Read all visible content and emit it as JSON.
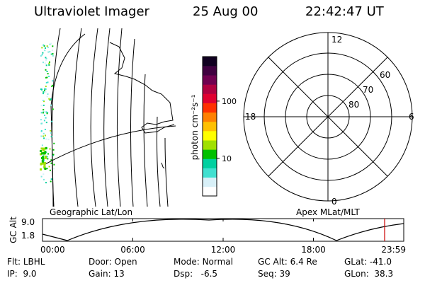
{
  "header": {
    "instrument": "Ultraviolet Imager",
    "date": "25 Aug 00",
    "time": "22:42:47 UT"
  },
  "geo_panel": {
    "caption": "Geographic Lat/Lon"
  },
  "colorbar": {
    "label": "photon cm⁻²s⁻¹",
    "ticks": [
      {
        "value": 100,
        "label": "100"
      },
      {
        "value": 10,
        "label": "10"
      }
    ],
    "scale": "log",
    "colors": [
      "#ffffff",
      "#d8f0f8",
      "#40e0d0",
      "#00d0a0",
      "#00c000",
      "#a0e000",
      "#ffff00",
      "#ffc000",
      "#ff8000",
      "#ff3000",
      "#e00030",
      "#b00040",
      "#700050",
      "#400040",
      "#100020"
    ]
  },
  "polar_panel": {
    "caption": "Apex MLat/MLT",
    "mlt_labels": [
      {
        "text": "12",
        "pos": "top"
      },
      {
        "text": "6",
        "pos": "right"
      },
      {
        "text": "18",
        "pos": "left"
      },
      {
        "text": "0",
        "pos": "bottom"
      }
    ],
    "lat_labels": [
      "60",
      "70",
      "80"
    ]
  },
  "altitude_plot": {
    "ylabel": "GC Alt",
    "yticks": [
      "9.0",
      "1.8"
    ],
    "xticks": [
      "00:00",
      "06:00",
      "12:00",
      "18:00",
      "23:59"
    ],
    "marker_time": "22:42:47",
    "marker_color": "#cc0000"
  },
  "info": {
    "row1": [
      {
        "label": "Flt:",
        "value": "LBHL"
      },
      {
        "label": "Door:",
        "value": "Open"
      },
      {
        "label": "Mode:",
        "value": "Normal"
      },
      {
        "label": "GC Alt:",
        "value": "6.4 Re"
      },
      {
        "label": "GLat:",
        "value": "-41.0"
      }
    ],
    "row2": [
      {
        "label": "IP:",
        "value": "9.0"
      },
      {
        "label": "Gain:",
        "value": "13"
      },
      {
        "label": "Dsp:",
        "value": "-6.5"
      },
      {
        "label": "Seq:",
        "value": "39"
      },
      {
        "label": "GLon:",
        "value": "38.3"
      }
    ]
  }
}
